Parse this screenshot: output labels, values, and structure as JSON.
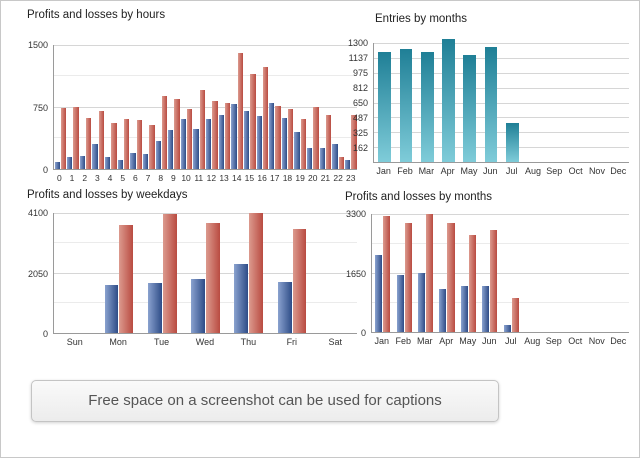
{
  "caption": {
    "text": "Free space on a screenshot can be used for captions"
  },
  "colors": {
    "blue": "#2e4c87",
    "blue_light": "#8aa2cf",
    "red": "#b94b41",
    "red_light": "#dc9a8e",
    "teal": "#1f7f96",
    "teal_light": "#7fccd9",
    "grid_major": "#d6d6d6",
    "grid_minor": "#ebebeb",
    "axis": "#9a9a9a"
  },
  "chart_data": [
    {
      "type": "bar",
      "title": "Profits and losses by hours",
      "categories": [
        "0",
        "1",
        "2",
        "3",
        "4",
        "5",
        "6",
        "7",
        "8",
        "9",
        "10",
        "11",
        "12",
        "13",
        "14",
        "15",
        "16",
        "17",
        "18",
        "19",
        "20",
        "21",
        "22",
        "23"
      ],
      "ylim": [
        0,
        1500
      ],
      "yticks": [
        0,
        750,
        1500
      ],
      "minor_yticks": [
        375,
        1125
      ],
      "grid": true,
      "legend": "none",
      "series": [
        {
          "name": "Profits",
          "color": "#2e4c87",
          "color_light": "#8aa2cf",
          "gradient": "h",
          "values": [
            90,
            140,
            160,
            300,
            150,
            110,
            190,
            180,
            340,
            470,
            600,
            490,
            610,
            650,
            790,
            700,
            640,
            800,
            620,
            450,
            250,
            260,
            300,
            110
          ]
        },
        {
          "name": "Losses",
          "color": "#b94b41",
          "color_light": "#dc9a8e",
          "gradient": "h",
          "values": [
            740,
            750,
            620,
            700,
            560,
            600,
            590,
            530,
            880,
            850,
            720,
            950,
            820,
            800,
            1400,
            1150,
            1230,
            760,
            730,
            600,
            750,
            650,
            140,
            650
          ]
        }
      ]
    },
    {
      "type": "bar",
      "title": "Entries by months",
      "categories": [
        "Jan",
        "Feb",
        "Mar",
        "Apr",
        "May",
        "Jun",
        "Jul",
        "Aug",
        "Sep",
        "Oct",
        "Nov",
        "Dec"
      ],
      "ylim": [
        0,
        1300
      ],
      "yticks": [
        162,
        325,
        487,
        650,
        812,
        975,
        1137,
        1300
      ],
      "minor_yticks": [],
      "grid": true,
      "legend": "none",
      "series": [
        {
          "name": "Entries",
          "color": "#1f7f96",
          "color_light": "#7fccd9",
          "gradient": "v",
          "values": [
            1200,
            1230,
            1200,
            1340,
            1170,
            1260,
            430,
            0,
            0,
            0,
            0,
            0
          ]
        }
      ]
    },
    {
      "type": "bar",
      "title": "Profits and losses by weekdays",
      "categories": [
        "Sun",
        "Mon",
        "Tue",
        "Wed",
        "Thu",
        "Fri",
        "Sat"
      ],
      "ylim": [
        0,
        4100
      ],
      "yticks": [
        0,
        2050,
        4100
      ],
      "minor_yticks": [
        1025,
        3075
      ],
      "grid": true,
      "legend": "none",
      "series": [
        {
          "name": "Profits",
          "color": "#2e4c87",
          "color_light": "#8aa2cf",
          "gradient": "h",
          "values": [
            0,
            1650,
            1700,
            1850,
            2350,
            1750,
            0
          ]
        },
        {
          "name": "Losses",
          "color": "#b94b41",
          "color_light": "#dc9a8e",
          "gradient": "h",
          "values": [
            0,
            3700,
            4050,
            3750,
            4100,
            3550,
            0
          ]
        }
      ]
    },
    {
      "type": "bar",
      "title": "Profits and losses by months",
      "categories": [
        "Jan",
        "Feb",
        "Mar",
        "Apr",
        "May",
        "Jun",
        "Jul",
        "Aug",
        "Sep",
        "Oct",
        "Nov",
        "Dec"
      ],
      "ylim": [
        0,
        3300
      ],
      "yticks": [
        0,
        1650,
        3300
      ],
      "minor_yticks": [
        825,
        2475
      ],
      "grid": true,
      "legend": "none",
      "series": [
        {
          "name": "Profits",
          "color": "#2e4c87",
          "color_light": "#8aa2cf",
          "gradient": "h",
          "values": [
            2150,
            1600,
            1650,
            1200,
            1300,
            1300,
            200,
            0,
            0,
            0,
            0,
            0
          ]
        },
        {
          "name": "Losses",
          "color": "#b94b41",
          "color_light": "#dc9a8e",
          "gradient": "h",
          "values": [
            3250,
            3050,
            3300,
            3050,
            2700,
            2850,
            950,
            0,
            0,
            0,
            0,
            0
          ]
        }
      ]
    }
  ]
}
